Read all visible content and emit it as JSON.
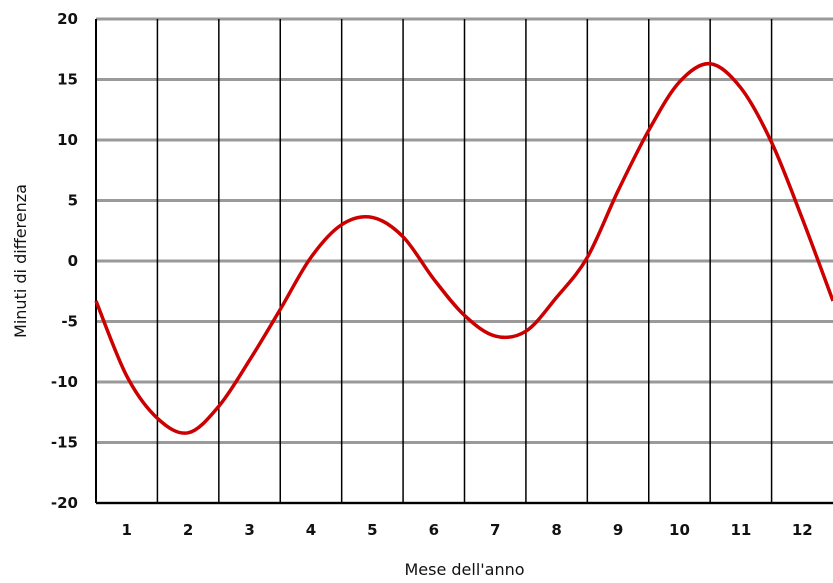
{
  "chart_data": {
    "type": "line",
    "title": "",
    "xlabel": "Mese dell'anno",
    "ylabel": "Minuti di differenza",
    "categories": [
      "1",
      "2",
      "3",
      "4",
      "5",
      "6",
      "7",
      "8",
      "9",
      "10",
      "11",
      "12"
    ],
    "ylim": [
      -20,
      20
    ],
    "yticks": [
      -20,
      -15,
      -10,
      -5,
      0,
      5,
      10,
      15,
      20
    ],
    "yticklabels": [
      "-20",
      "-15",
      "-10",
      "-5",
      "0",
      "5",
      "10",
      "15",
      "20"
    ],
    "xlim": [
      0,
      12
    ],
    "grid": true,
    "series": [
      {
        "name": "",
        "color": "#cc0000",
        "x": [
          0,
          0.5,
          1.0,
          1.5,
          2.0,
          2.5,
          3.0,
          3.5,
          4.0,
          4.5,
          5.0,
          5.5,
          6.0,
          6.5,
          7.0,
          7.5,
          8.0,
          8.5,
          9.0,
          9.5,
          10.0,
          10.5,
          11.0,
          11.5,
          12.0
        ],
        "values": [
          -3.3,
          -9.5,
          -13.0,
          -14.2,
          -12.0,
          -8.2,
          -4.0,
          0.3,
          3.0,
          3.6,
          2.0,
          -1.5,
          -4.5,
          -6.2,
          -5.8,
          -3.0,
          0.3,
          5.8,
          10.8,
          14.8,
          16.3,
          14.3,
          9.8,
          3.5,
          -3.3
        ]
      }
    ]
  }
}
